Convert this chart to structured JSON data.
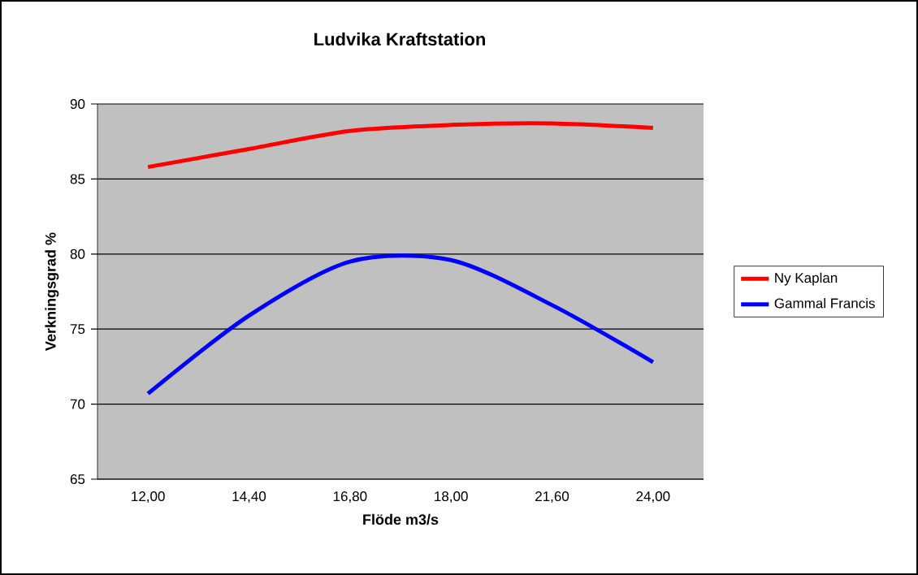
{
  "chart_data": {
    "type": "line",
    "title": "Ludvika Kraftstation",
    "xlabel": "Flöde m3/s",
    "ylabel": "Verkningsgrad %",
    "categories": [
      "12,00",
      "14,40",
      "16,80",
      "18,00",
      "21,60",
      "24,00"
    ],
    "series": [
      {
        "name": "Ny Kaplan",
        "color": "#ff0000",
        "values": [
          85.8,
          87.0,
          88.2,
          88.6,
          88.7,
          88.4
        ]
      },
      {
        "name": "Gammal Francis",
        "color": "#0000ff",
        "values": [
          70.7,
          75.9,
          79.5,
          79.6,
          76.6,
          72.8
        ]
      }
    ],
    "ylim": [
      65,
      90
    ],
    "yticks": [
      65,
      70,
      75,
      80,
      85,
      90
    ],
    "grid": "y",
    "legend": "right",
    "marker": "none",
    "line_style": "solid"
  }
}
